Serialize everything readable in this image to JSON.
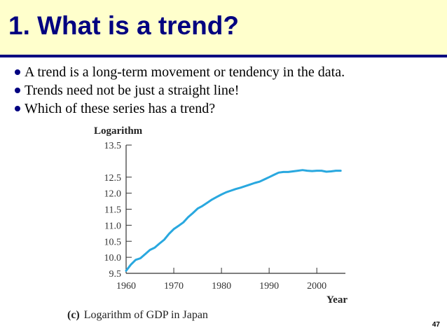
{
  "slide": {
    "title": "1.  What is a trend?",
    "bullets": [
      "A trend is a long-term movement or tendency in the data.",
      "Trends need not be just a straight line!",
      "Which of these series has a trend?"
    ],
    "page_number": "47"
  },
  "colors": {
    "title_text": "#000080",
    "title_background": "#ffffcc",
    "line": "#29a8df"
  },
  "chart_data": {
    "type": "line",
    "title": "",
    "ylabel": "Logarithm",
    "xlabel": "Year",
    "caption_prefix": "(c)",
    "caption": "Logarithm of GDP in Japan",
    "xlim": [
      1960,
      2006
    ],
    "ylim": [
      9.5,
      13.5
    ],
    "x_ticks": [
      1960,
      1970,
      1980,
      1990,
      2000
    ],
    "y_ticks": [
      9.5,
      10.0,
      10.5,
      11.0,
      11.5,
      12.0,
      12.5,
      13.5
    ],
    "y_tick_labels": [
      "9.5",
      "10.0",
      "10.5",
      "11.0",
      "11.5",
      "12.0",
      "12.5",
      "13.5"
    ],
    "grid": false,
    "series": [
      {
        "x": [
          1960,
          1961,
          1962,
          1963,
          1964,
          1965,
          1966,
          1967,
          1968,
          1969,
          1970,
          1971,
          1972,
          1973,
          1974,
          1975,
          1976,
          1977,
          1978,
          1979,
          1980,
          1981,
          1982,
          1983,
          1984,
          1985,
          1986,
          1987,
          1988,
          1989,
          1990,
          1991,
          1992,
          1993,
          1994,
          1995,
          1996,
          1997,
          1998,
          1999,
          2000,
          2001,
          2002,
          2003,
          2004,
          2005
        ],
        "y": [
          9.58,
          9.77,
          9.92,
          9.97,
          10.1,
          10.23,
          10.3,
          10.43,
          10.55,
          10.73,
          10.88,
          10.98,
          11.09,
          11.25,
          11.38,
          11.52,
          11.6,
          11.7,
          11.8,
          11.88,
          11.96,
          12.03,
          12.08,
          12.13,
          12.17,
          12.22,
          12.27,
          12.32,
          12.36,
          12.43,
          12.5,
          12.57,
          12.64,
          12.66,
          12.66,
          12.68,
          12.7,
          12.72,
          12.7,
          12.69,
          12.7,
          12.7,
          12.67,
          12.68,
          12.7,
          12.7
        ]
      }
    ]
  }
}
